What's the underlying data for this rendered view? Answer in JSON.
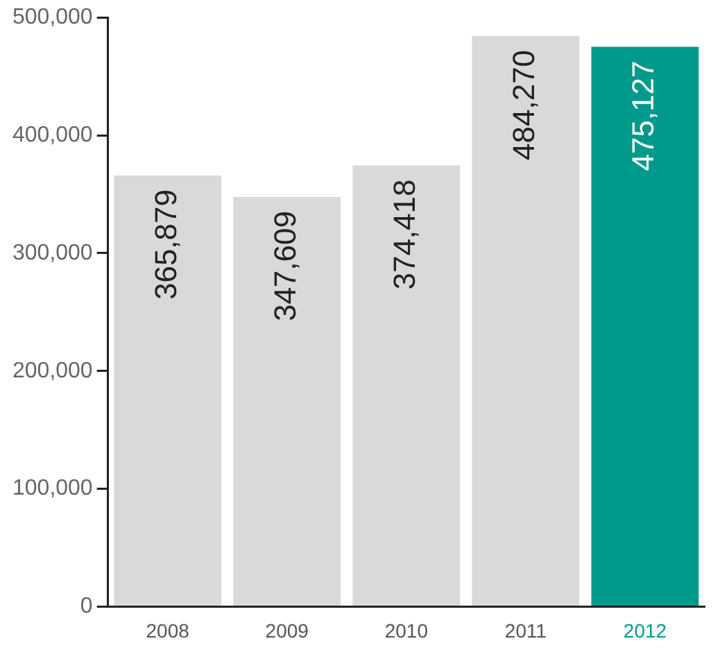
{
  "chart_data": {
    "type": "bar",
    "categories": [
      "2008",
      "2009",
      "2010",
      "2011",
      "2012"
    ],
    "values": [
      365879,
      347609,
      374418,
      484270,
      475127
    ],
    "colors": [
      "#d9d9d9",
      "#d9d9d9",
      "#d9d9d9",
      "#d9d9d9",
      "#009a8c"
    ],
    "value_labels": [
      "365,879",
      "347,609",
      "374,418",
      "484,270",
      "475,127"
    ],
    "ylim": [
      0,
      500000
    ],
    "yticks": [
      {
        "value": 0,
        "label": "0"
      },
      {
        "value": 100000,
        "label": "100,000"
      },
      {
        "value": 200000,
        "label": "200,000"
      },
      {
        "value": 300000,
        "label": "300,000"
      },
      {
        "value": 400000,
        "label": "400,000"
      },
      {
        "value": 500000,
        "label": "500,000"
      }
    ],
    "grid": false,
    "legend": false
  }
}
